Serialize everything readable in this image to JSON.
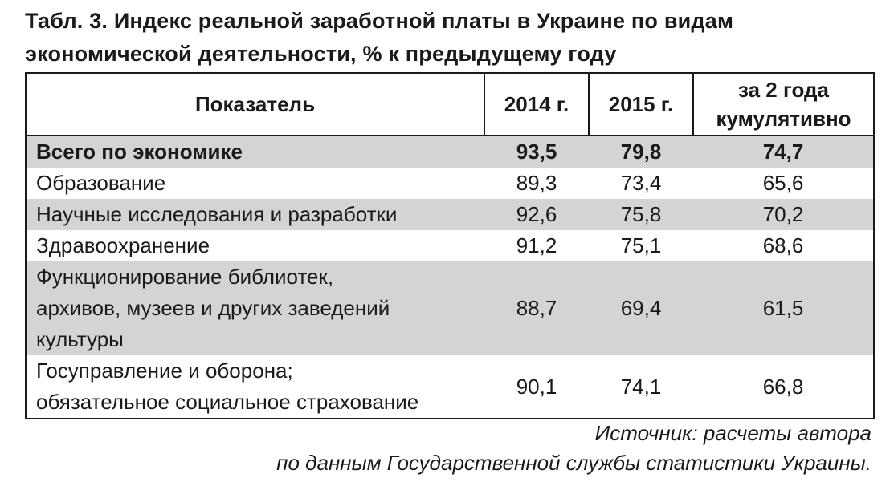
{
  "caption": {
    "line1": "Табл. 3. Индекс реальной заработной платы в Украине по видам",
    "line2": "экономической деятельности, % к предыдущему году"
  },
  "table": {
    "headers": {
      "indicator": "Показатель",
      "y2014": "2014 г.",
      "y2015": "2015 г.",
      "cumulative_line1": "за 2 года",
      "cumulative_line2": "кумулятивно"
    },
    "rows": [
      {
        "label": "Всего по экономике",
        "y2014": "93,5",
        "y2015": "79,8",
        "cumulative": "74,7"
      },
      {
        "label": "Образование",
        "y2014": "89,3",
        "y2015": "73,4",
        "cumulative": "65,6"
      },
      {
        "label": "Научные исследования и разработки",
        "y2014": "92,6",
        "y2015": "75,8",
        "cumulative": "70,2"
      },
      {
        "label": "Здравоохранение",
        "y2014": "91,2",
        "y2015": "75,1",
        "cumulative": "68,6"
      },
      {
        "label_lines": [
          "Функционирование библиотек,",
          "архивов, музеев и других заведений",
          "культуры"
        ],
        "y2014": "88,7",
        "y2015": "69,4",
        "cumulative": "61,5"
      },
      {
        "label_lines": [
          "Госуправление и оборона;",
          "обязательное социальное страхование"
        ],
        "y2014": "90,1",
        "y2015": "74,1",
        "cumulative": "66,8"
      }
    ]
  },
  "source": {
    "line1": "Источник: расчеты автора",
    "line2": "по данным Государственной службы статистики Украины."
  }
}
